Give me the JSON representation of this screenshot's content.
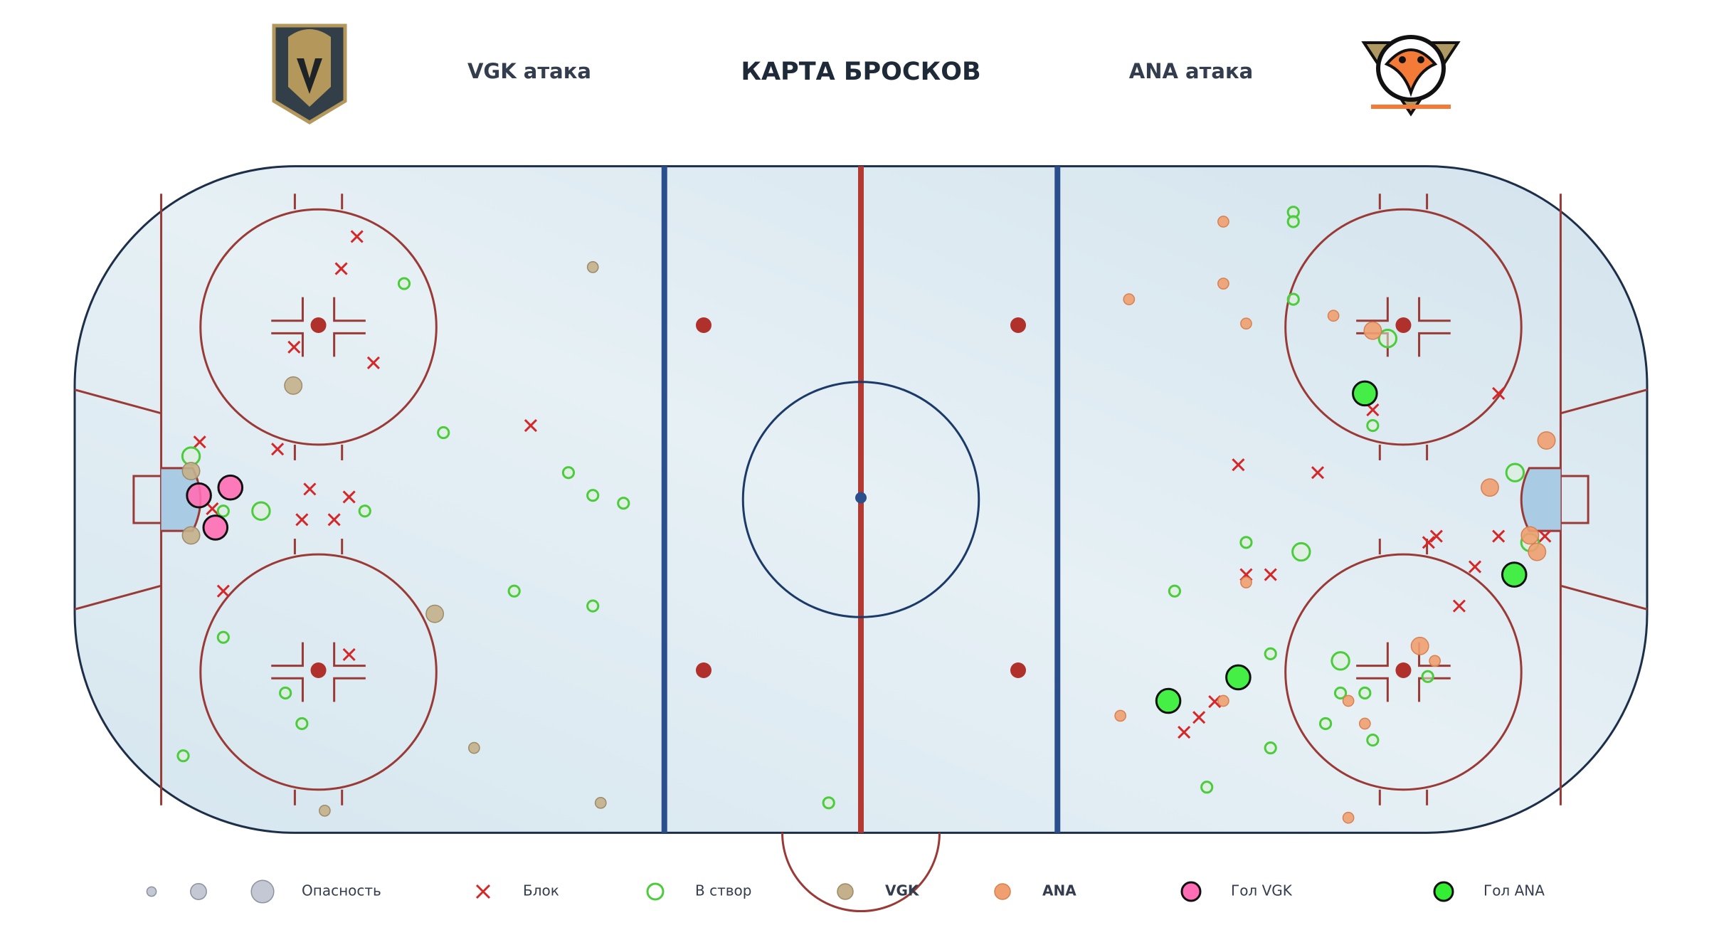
{
  "chart_data": {
    "type": "scatter",
    "title": "КАРТА БРОСКОВ",
    "subtitles": [
      "VGK атака",
      "ANA атака"
    ],
    "xlim": [
      -100,
      100
    ],
    "ylim": [
      -42.5,
      42.5
    ],
    "size_label": "Опасность",
    "size_levels": [
      1,
      2,
      3
    ],
    "series": [
      {
        "name": "Блок",
        "marker": "x",
        "color": "#d62728",
        "x": [
          -64.1,
          -66.1,
          -72.1,
          -62.0,
          -84.1,
          -74.2,
          -42.0,
          -70.1,
          -65.1,
          -71.1,
          -67.0,
          -81.1,
          -65.1,
          -82.5,
          81.1,
          65.1,
          48.0,
          58.1,
          72.2,
          73.2,
          81.1,
          87.0,
          78.1,
          49.0,
          52.1,
          76.1,
          45.0,
          43.0,
          41.1
        ],
        "y": [
          33.3,
          29.2,
          19.2,
          17.2,
          7.1,
          6.2,
          9.2,
          1.1,
          0.1,
          -2.8,
          -2.8,
          -11.9,
          -20.0,
          -1.4,
          13.3,
          11.2,
          4.2,
          3.2,
          -5.7,
          -4.9,
          -4.9,
          -4.9,
          -8.8,
          -9.8,
          -9.8,
          -13.8,
          -26.0,
          -28.0,
          -29.9
        ]
      },
      {
        "name": "В створ",
        "marker": "ring",
        "color": "#4ccc3c",
        "x": [
          -58.1,
          -53.1,
          -85.2,
          -76.3,
          -63.1,
          -37.2,
          -34.1,
          -30.2,
          -44.1,
          -34.1,
          -81.1,
          -73.2,
          -71.1,
          -86.2,
          -4.1,
          -81.1,
          55.0,
          55.0,
          55.0,
          67.0,
          65.1,
          83.2,
          49.0,
          56.0,
          85.1,
          39.9,
          52.1,
          61.0,
          72.1,
          61.0,
          64.1,
          59.1,
          65.1,
          52.1,
          44.0
        ],
        "y": [
          27.3,
          8.3,
          5.3,
          -1.7,
          -1.7,
          3.2,
          0.3,
          -0.7,
          -11.9,
          -13.8,
          -17.8,
          -24.9,
          -28.8,
          -32.9,
          -38.9,
          -1.7,
          36.4,
          35.2,
          25.3,
          20.3,
          9.2,
          3.2,
          -5.7,
          -6.9,
          -5.7,
          -11.9,
          -19.9,
          -20.8,
          -22.8,
          -24.9,
          -24.9,
          -28.8,
          -30.9,
          -31.9,
          -36.9
        ],
        "sizes": [
          1,
          1,
          2,
          2,
          1,
          1,
          1,
          1,
          1,
          1,
          1,
          1,
          1,
          1,
          1,
          1,
          1,
          1,
          1,
          2,
          1,
          2,
          1,
          2,
          2,
          1,
          1,
          2,
          1,
          1,
          1,
          1,
          1,
          1,
          1
        ]
      },
      {
        "name": "VGK",
        "marker": "dot",
        "color": "#c4b08a",
        "edge": "#9c8a68",
        "bold": true,
        "x": [
          -34.1,
          -72.2,
          -85.2,
          -54.2,
          -49.2,
          -33.1,
          -68.2,
          -85.2
        ],
        "y": [
          29.4,
          14.3,
          -4.8,
          -14.8,
          -31.9,
          -38.9,
          -39.9,
          3.4
        ],
        "sizes": [
          1,
          2,
          2,
          2,
          1,
          1,
          1,
          2
        ]
      },
      {
        "name": "ANA",
        "marker": "dot",
        "color": "#f0a070",
        "edge": "#d88050",
        "bold": true,
        "x": [
          46.1,
          34.1,
          46.1,
          49.0,
          60.1,
          65.1,
          87.2,
          80.0,
          85.1,
          86.0,
          49.0,
          71.1,
          73.0,
          62.0,
          46.1,
          33.0,
          64.1,
          62.0
        ],
        "y": [
          35.2,
          25.3,
          27.3,
          22.2,
          23.2,
          21.3,
          7.3,
          1.3,
          -4.8,
          -6.9,
          -10.8,
          -18.9,
          -20.8,
          -25.9,
          -25.9,
          -27.8,
          -28.8,
          -40.8
        ],
        "sizes": [
          1,
          1,
          1,
          1,
          1,
          2,
          2,
          2,
          2,
          2,
          1,
          2,
          1,
          1,
          1,
          1,
          1,
          1
        ]
      },
      {
        "name": "Гол VGK",
        "marker": "dot",
        "color": "#ff6eb4",
        "edge": "#111111",
        "x": [
          -84.2,
          -80.2,
          -82.1
        ],
        "y": [
          0.3,
          1.3,
          -3.8
        ],
        "sizes": [
          3,
          3,
          3
        ]
      },
      {
        "name": "Гол ANA",
        "marker": "dot",
        "color": "#33ee33",
        "edge": "#111111",
        "x": [
          64.1,
          83.1,
          48.0,
          39.1
        ],
        "y": [
          13.3,
          -9.8,
          -22.9,
          -25.9
        ],
        "sizes": [
          3,
          3,
          3,
          3
        ]
      }
    ]
  }
}
